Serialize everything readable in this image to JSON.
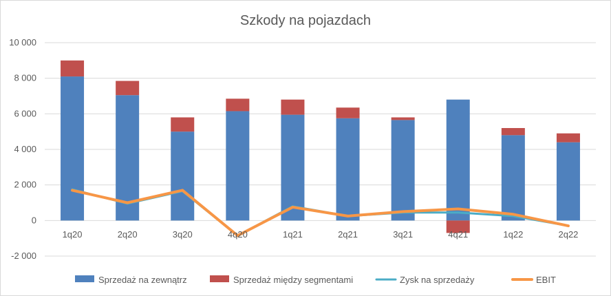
{
  "chart_data": {
    "type": "bar",
    "title": "Szkody na pojazdach",
    "categories": [
      "1q20",
      "2q20",
      "3q20",
      "4q20",
      "1q21",
      "2q21",
      "3q21",
      "4q21",
      "1q22",
      "2q22"
    ],
    "stacked_series": [
      {
        "name": "Sprzedaż na zewnątrz",
        "color": "#4f81bd",
        "values": [
          8100,
          7050,
          5000,
          6150,
          5950,
          5750,
          5650,
          6800,
          4800,
          4400
        ]
      },
      {
        "name": "Sprzedaż między segmentami",
        "color": "#c0504d",
        "values": [
          900,
          800,
          800,
          700,
          850,
          600,
          150,
          -700,
          400,
          500
        ]
      }
    ],
    "line_series": [
      {
        "name": "Zysk na sprzedaży",
        "color": "#4bacc6",
        "values": [
          1750,
          950,
          1650,
          -850,
          800,
          250,
          450,
          450,
          250,
          -300
        ]
      },
      {
        "name": "EBIT",
        "color": "#f79646",
        "values": [
          1700,
          1000,
          1700,
          -850,
          750,
          250,
          500,
          650,
          350,
          -300
        ]
      }
    ],
    "y_ticks": [
      "-2 000",
      "0",
      "2 000",
      "4 000",
      "6 000",
      "8 000",
      "10 000"
    ],
    "ylim": [
      -2000,
      10000
    ],
    "grid": true,
    "legend_position": "bottom"
  }
}
